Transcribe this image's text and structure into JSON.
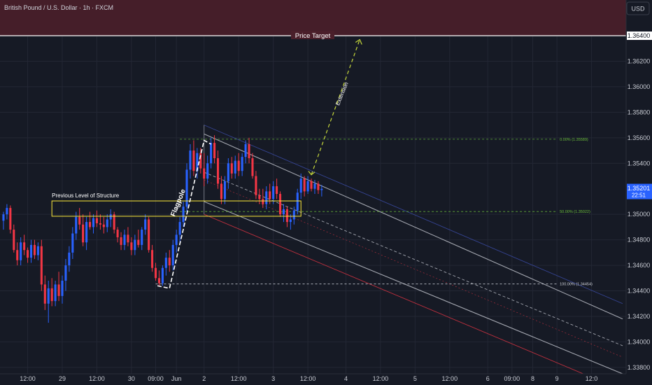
{
  "header": {
    "title": "British Pound / U.S. Dollar · 1h · FXCM",
    "currency": "USD"
  },
  "colors": {
    "background": "#161a25",
    "grid": "#232734",
    "bull": "#2962ff",
    "bear": "#f23645",
    "target_zone": "#4a1f2a",
    "fib": "#6bbf3a",
    "structure": "#ffeb3b",
    "channel": "#d1d4dc",
    "channel_outer_top": "#3f51b5",
    "channel_outer_bottom": "#f23645",
    "extension": "#c6d83b",
    "price_tag": "#2962ff"
  },
  "chart_data": {
    "type": "candlestick",
    "symbol": "British Pound / U.S. Dollar",
    "interval": "1h",
    "source": "FXCM",
    "currency": "USD",
    "ylim": [
      1.3375,
      1.3668
    ],
    "xlim": [
      -1,
      180
    ],
    "y_ticks": [
      "1.36200",
      "1.36000",
      "1.35800",
      "1.35600",
      "1.35400",
      "1.35000",
      "1.34800",
      "1.34600",
      "1.34400",
      "1.34200",
      "1.34000",
      "1.33800"
    ],
    "x_ticks": [
      {
        "label": "12:00",
        "x": 7
      },
      {
        "label": "29",
        "x": 17
      },
      {
        "label": "12:00",
        "x": 27
      },
      {
        "label": "30",
        "x": 37
      },
      {
        "label": "09:00",
        "x": 44
      },
      {
        "label": "Jun",
        "x": 50
      },
      {
        "label": "2",
        "x": 58
      },
      {
        "label": "12:00",
        "x": 68
      },
      {
        "label": "3",
        "x": 78
      },
      {
        "label": "12:00",
        "x": 88
      },
      {
        "label": "4",
        "x": 99
      },
      {
        "label": "12:00",
        "x": 109
      },
      {
        "label": "5",
        "x": 119
      },
      {
        "label": "12:00",
        "x": 129
      },
      {
        "label": "6",
        "x": 140
      },
      {
        "label": "09:00",
        "x": 147
      },
      {
        "label": "8",
        "x": 153
      },
      {
        "label": "9",
        "x": 160
      },
      {
        "label": "12:0",
        "x": 170
      }
    ],
    "candles": [
      [
        1.3495,
        1.3502,
        1.3488,
        1.35
      ],
      [
        1.35,
        1.3508,
        1.3496,
        1.3505
      ],
      [
        1.3505,
        1.3507,
        1.3485,
        1.3488
      ],
      [
        1.3488,
        1.3492,
        1.347,
        1.3472
      ],
      [
        1.3472,
        1.3478,
        1.346,
        1.3464
      ],
      [
        1.3464,
        1.3482,
        1.346,
        1.3478
      ],
      [
        1.3478,
        1.3484,
        1.3468,
        1.3472
      ],
      [
        1.3472,
        1.3474,
        1.3462,
        1.3466
      ],
      [
        1.3466,
        1.348,
        1.3462,
        1.3476
      ],
      [
        1.3476,
        1.348,
        1.3465,
        1.3468
      ],
      [
        1.3468,
        1.3478,
        1.3464,
        1.3475
      ],
      [
        1.3475,
        1.348,
        1.344,
        1.3445
      ],
      [
        1.3445,
        1.3452,
        1.3425,
        1.343
      ],
      [
        1.343,
        1.3448,
        1.3415,
        1.3442
      ],
      [
        1.3442,
        1.345,
        1.3428,
        1.3432
      ],
      [
        1.3432,
        1.3448,
        1.3428,
        1.3445
      ],
      [
        1.3445,
        1.3455,
        1.3432,
        1.3436
      ],
      [
        1.3436,
        1.3452,
        1.343,
        1.3448
      ],
      [
        1.3448,
        1.3465,
        1.344,
        1.346
      ],
      [
        1.346,
        1.3475,
        1.3455,
        1.347
      ],
      [
        1.347,
        1.349,
        1.3465,
        1.3485
      ],
      [
        1.3485,
        1.3502,
        1.348,
        1.3498
      ],
      [
        1.3498,
        1.3505,
        1.3488,
        1.3492
      ],
      [
        1.3492,
        1.35,
        1.3475,
        1.3478
      ],
      [
        1.3478,
        1.3498,
        1.3472,
        1.3494
      ],
      [
        1.3494,
        1.3502,
        1.3488,
        1.349
      ],
      [
        1.349,
        1.35,
        1.3485,
        1.3497
      ],
      [
        1.3497,
        1.3503,
        1.349,
        1.3493
      ],
      [
        1.3493,
        1.35,
        1.3488,
        1.3492
      ],
      [
        1.3492,
        1.3498,
        1.3485,
        1.349
      ],
      [
        1.349,
        1.35,
        1.3486,
        1.3496
      ],
      [
        1.3496,
        1.3504,
        1.349,
        1.35
      ],
      [
        1.35,
        1.3502,
        1.3485,
        1.3488
      ],
      [
        1.3488,
        1.349,
        1.3478,
        1.3482
      ],
      [
        1.3482,
        1.3486,
        1.3472,
        1.3476
      ],
      [
        1.3476,
        1.3488,
        1.3472,
        1.3484
      ],
      [
        1.3484,
        1.349,
        1.3475,
        1.3478
      ],
      [
        1.3478,
        1.3482,
        1.3468,
        1.3472
      ],
      [
        1.3472,
        1.3484,
        1.3468,
        1.348
      ],
      [
        1.348,
        1.3488,
        1.3474,
        1.3476
      ],
      [
        1.3476,
        1.349,
        1.3472,
        1.3488
      ],
      [
        1.3488,
        1.35,
        1.3484,
        1.3496
      ],
      [
        1.3496,
        1.3498,
        1.347,
        1.3472
      ],
      [
        1.3472,
        1.3476,
        1.3455,
        1.3458
      ],
      [
        1.3458,
        1.3462,
        1.3448,
        1.345
      ],
      [
        1.345,
        1.3456,
        1.3444,
        1.3446
      ],
      [
        1.3446,
        1.346,
        1.3444,
        1.3458
      ],
      [
        1.3458,
        1.347,
        1.3452,
        1.3466
      ],
      [
        1.3466,
        1.3472,
        1.3455,
        1.346
      ],
      [
        1.346,
        1.348,
        1.3456,
        1.3476
      ],
      [
        1.3476,
        1.3488,
        1.347,
        1.3484
      ],
      [
        1.3484,
        1.3498,
        1.3478,
        1.3494
      ],
      [
        1.3494,
        1.351,
        1.349,
        1.3506
      ],
      [
        1.3506,
        1.354,
        1.3502,
        1.3535
      ],
      [
        1.3535,
        1.3555,
        1.3528,
        1.355
      ],
      [
        1.355,
        1.3558,
        1.353,
        1.3534
      ],
      [
        1.3534,
        1.3552,
        1.3528,
        1.3548
      ],
      [
        1.3548,
        1.3552,
        1.3532,
        1.3536
      ],
      [
        1.3536,
        1.3548,
        1.3522,
        1.3528
      ],
      [
        1.3528,
        1.3546,
        1.3524,
        1.354
      ],
      [
        1.354,
        1.356,
        1.3536,
        1.3556
      ],
      [
        1.3556,
        1.3562,
        1.354,
        1.3544
      ],
      [
        1.3544,
        1.355,
        1.352,
        1.3524
      ],
      [
        1.3524,
        1.353,
        1.3508,
        1.3512
      ],
      [
        1.3512,
        1.353,
        1.3508,
        1.3526
      ],
      [
        1.3526,
        1.3544,
        1.352,
        1.354
      ],
      [
        1.354,
        1.3545,
        1.3528,
        1.3532
      ],
      [
        1.3532,
        1.3546,
        1.3528,
        1.3542
      ],
      [
        1.3542,
        1.3548,
        1.353,
        1.3534
      ],
      [
        1.3534,
        1.3548,
        1.353,
        1.3545
      ],
      [
        1.3545,
        1.3558,
        1.354,
        1.3555
      ],
      [
        1.3555,
        1.356,
        1.354,
        1.3544
      ],
      [
        1.3544,
        1.3548,
        1.3528,
        1.353
      ],
      [
        1.353,
        1.3534,
        1.3512,
        1.3515
      ],
      [
        1.3515,
        1.352,
        1.3508,
        1.3512
      ],
      [
        1.3512,
        1.352,
        1.3505,
        1.3508
      ],
      [
        1.3508,
        1.3522,
        1.3504,
        1.3518
      ],
      [
        1.3518,
        1.3524,
        1.3508,
        1.3512
      ],
      [
        1.3512,
        1.3526,
        1.3508,
        1.3522
      ],
      [
        1.3522,
        1.3528,
        1.3512,
        1.3516
      ],
      [
        1.3516,
        1.3518,
        1.3498,
        1.35
      ],
      [
        1.35,
        1.3508,
        1.3494,
        1.3504
      ],
      [
        1.3504,
        1.3506,
        1.349,
        1.3494
      ],
      [
        1.3494,
        1.35,
        1.3488,
        1.3496
      ],
      [
        1.3496,
        1.3506,
        1.3492,
        1.3503
      ],
      [
        1.3503,
        1.352,
        1.35,
        1.3517
      ],
      [
        1.3517,
        1.3532,
        1.3512,
        1.3528
      ],
      [
        1.3528,
        1.353,
        1.3514,
        1.3518
      ],
      [
        1.3518,
        1.353,
        1.3516,
        1.3526
      ],
      [
        1.3526,
        1.3528,
        1.3518,
        1.352
      ],
      [
        1.352,
        1.3527,
        1.3516,
        1.3524
      ],
      [
        1.3524,
        1.3526,
        1.3516,
        1.3519
      ],
      [
        1.3519,
        1.3523,
        1.3514,
        1.352
      ]
    ],
    "annotations": {
      "target_label": "Price Target",
      "target_price": 1.364,
      "target_price_label": "1.36400",
      "structure_label": "Previous Level of Structure",
      "flagpole_label": "Flagpole",
      "extension_label": "Extension",
      "current_price": "1.35201",
      "countdown": "22:51",
      "fib_levels": [
        {
          "label": "0.00% (1.35589)",
          "value": 1.35589
        },
        {
          "label": "50.00% (1.35022)",
          "value": 1.35022
        },
        {
          "label": "100.00% (1.34454)",
          "value": 1.34454
        }
      ]
    }
  }
}
